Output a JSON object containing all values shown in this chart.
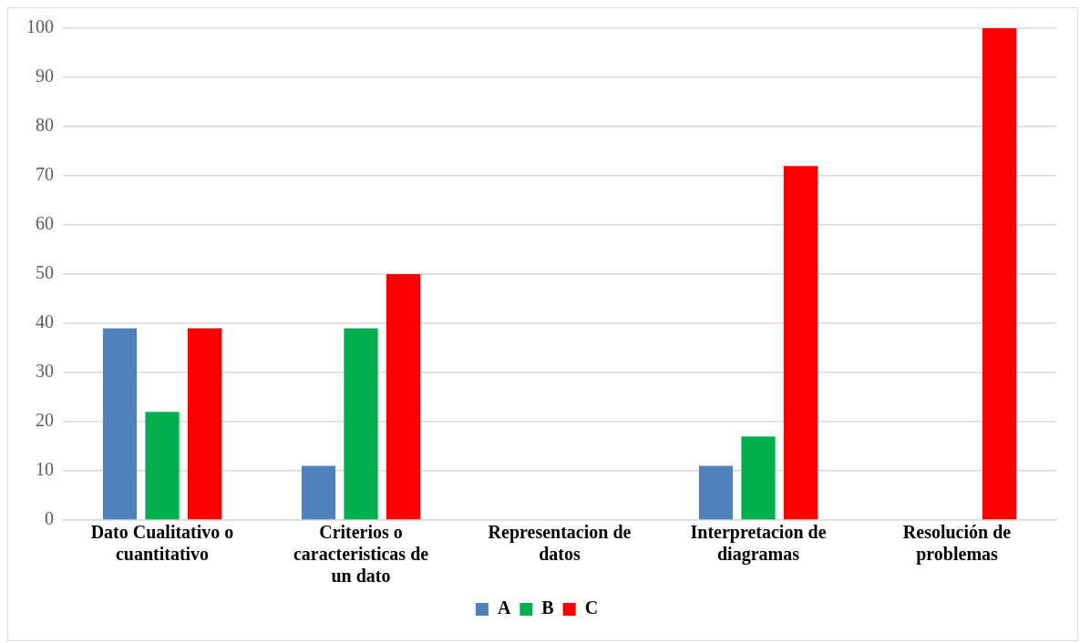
{
  "chart_data": {
    "type": "bar",
    "categories": [
      "Dato Cualitativo o cuantitativo",
      "Criterios o caracteristicas de un dato",
      "Representacion de datos",
      "Interpretacion de diagramas",
      "Resolución de problemas"
    ],
    "series": [
      {
        "name": "A",
        "color": "#4f81bd",
        "values": [
          39,
          11,
          0,
          11,
          0
        ]
      },
      {
        "name": "B",
        "color": "#00b050",
        "values": [
          22,
          39,
          0,
          17,
          0
        ]
      },
      {
        "name": "C",
        "color": "#ff0000",
        "values": [
          39,
          50,
          0,
          72,
          100
        ]
      }
    ],
    "ylim": [
      0,
      100
    ],
    "yticks": [
      0,
      10,
      20,
      30,
      40,
      50,
      60,
      70,
      80,
      90,
      100
    ],
    "grid": "y",
    "legend": "bottom"
  }
}
